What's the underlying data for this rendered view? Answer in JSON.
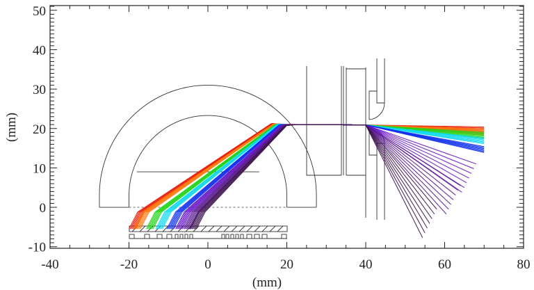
{
  "chart_data": {
    "type": "line",
    "title": "",
    "xlabel": "(mm)",
    "ylabel": "(mm)",
    "xlim": [
      -40,
      80
    ],
    "ylim": [
      -10.4,
      51.2
    ],
    "x_ticks": [
      "-40",
      "-20",
      "0",
      "20",
      "40",
      "60",
      "80"
    ],
    "y_ticks": [
      "-10",
      "0",
      "10",
      "20",
      "30",
      "40",
      "50"
    ],
    "x_tick_values": [
      -40,
      -20,
      0,
      20,
      40,
      60,
      80
    ],
    "y_tick_values": [
      -10,
      0,
      10,
      20,
      30,
      40,
      50
    ],
    "x_minor_step": 5,
    "y_minor_step": 1,
    "grid": false,
    "series": [
      {
        "color": "#e8200c",
        "start_x": -20.0,
        "start_y": -5.5,
        "focus": [
          16,
          21.2
        ],
        "end": [
          70,
          20.4
        ]
      },
      {
        "color": "#ff7a10",
        "start_x": -18.8,
        "start_y": -5.5,
        "focus": [
          16.5,
          21.1
        ],
        "end": [
          70,
          19.9
        ]
      },
      {
        "color": "#22d41a",
        "start_x": -15.6,
        "start_y": -5.5,
        "focus": [
          17,
          21.0
        ],
        "end": [
          70,
          19.0
        ]
      },
      {
        "color": "#10d8ee",
        "start_x": -13.2,
        "start_y": -5.5,
        "focus": [
          17.5,
          21.0
        ],
        "end": [
          70,
          17.6
        ]
      },
      {
        "color": "#1030f0",
        "start_x": -10.4,
        "start_y": -5.5,
        "focus": [
          18,
          20.9
        ],
        "end": [
          70,
          15.4
        ]
      },
      {
        "color": "#6a18c8",
        "start_x": -8.2,
        "start_y": -5.5,
        "focus": [
          18.5,
          20.8
        ],
        "end": [
          68,
          11.0
        ]
      },
      {
        "color": "#5a1a8c",
        "start_x": -6.2,
        "start_y": -5.5,
        "focus": [
          19,
          20.8
        ],
        "end": [
          64,
          5.5
        ]
      },
      {
        "color": "#3e1450",
        "start_x": -4.6,
        "start_y": -5.5,
        "focus": [
          19.5,
          20.7
        ],
        "end": [
          58,
          -0.5
        ]
      }
    ]
  }
}
